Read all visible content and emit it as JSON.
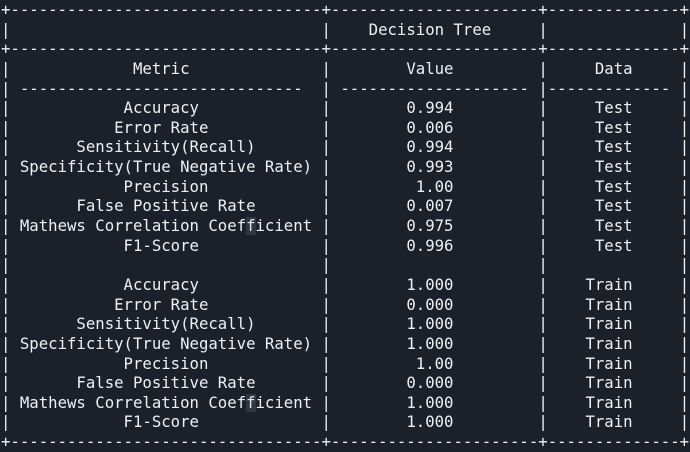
{
  "terminal": {
    "background_color": "#1a212b",
    "text_color": "#eef1f3"
  },
  "table": {
    "title": "Decision Tree",
    "columns": [
      "Metric",
      "Value",
      "Data"
    ],
    "sections": [
      {
        "name": "Test",
        "rows": [
          {
            "metric": "Accuracy",
            "value": "0.994",
            "data": "Test"
          },
          {
            "metric": "Error Rate",
            "value": "0.006",
            "data": "Test"
          },
          {
            "metric": "Sensitivity(Recall)",
            "value": "0.994",
            "data": "Test"
          },
          {
            "metric": "Specificity(True Negative Rate)",
            "value": "0.993",
            "data": "Test"
          },
          {
            "metric": "Precision",
            "value": "1.00",
            "data": "Test"
          },
          {
            "metric": "False Positive Rate",
            "value": "0.007",
            "data": "Test"
          },
          {
            "metric": "Mathews Correlation Coefficient",
            "value": "0.975",
            "data": "Test"
          },
          {
            "metric": "F1-Score",
            "value": "0.996",
            "data": "Test"
          }
        ]
      },
      {
        "name": "Train",
        "rows": [
          {
            "metric": "Accuracy",
            "value": "1.000",
            "data": "Train"
          },
          {
            "metric": "Error Rate",
            "value": "0.000",
            "data": "Train"
          },
          {
            "metric": "Sensitivity(Recall)",
            "value": "1.000",
            "data": "Train"
          },
          {
            "metric": "Specificity(True Negative Rate)",
            "value": "1.000",
            "data": "Train"
          },
          {
            "metric": "Precision",
            "value": "1.00",
            "data": "Train"
          },
          {
            "metric": "False Positive Rate",
            "value": "0.000",
            "data": "Train"
          },
          {
            "metric": "Mathews Correlation Coefficient",
            "value": "1.000",
            "data": "Train"
          },
          {
            "metric": "F1-Score",
            "value": "1.000",
            "data": "Train"
          }
        ]
      }
    ]
  }
}
